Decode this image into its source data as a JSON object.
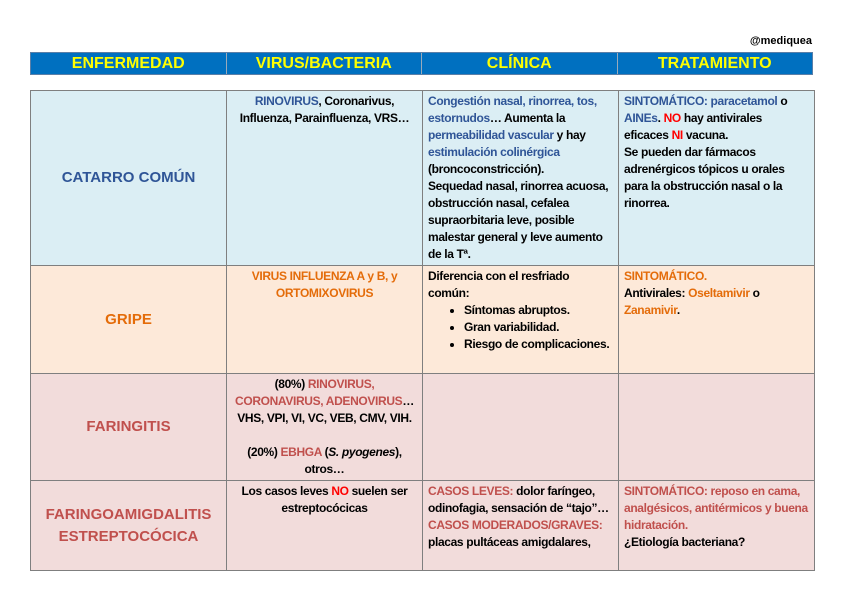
{
  "handle": "@mediquea",
  "headers": [
    "ENFERMEDAD",
    "VIRUS/BACTERIA",
    "CLÍNICA",
    "TRATAMIENTO"
  ],
  "colors": {
    "header_bg": "#0070c0",
    "header_text": "#ffff00",
    "blue": "#2f5597",
    "red": "#ff0000",
    "orange": "#e46c0a",
    "rose": "#c0504d"
  },
  "rows": [
    {
      "name": "CATARRO COMÚN",
      "name_color": "b",
      "virus": [
        [
          [
            "RINOVIRUS",
            "b"
          ],
          [
            ", Coronarivus, Influenza, Parainfluenza, VRS…",
            "k"
          ]
        ]
      ],
      "clinica": [
        [
          [
            "Congestión nasal, rinorrea, tos, estornudos",
            "b"
          ],
          [
            "… Aumenta la ",
            "k"
          ],
          [
            "permeabilidad vascular",
            "b"
          ],
          [
            " y hay ",
            "k"
          ],
          [
            "estimulación colinérgica",
            "b"
          ],
          [
            " (broncoconstricción).",
            "k"
          ]
        ],
        [
          [
            "Sequedad nasal, rinorrea acuosa, obstrucción nasal, cefalea supraorbitaria leve, posible malestar general y leve aumento de la Tª.",
            "k"
          ]
        ]
      ],
      "tratamiento": [
        [
          [
            "SINTOMÁTICO: paracetamol",
            "b"
          ],
          [
            " o ",
            "k"
          ],
          [
            "AINEs",
            "b"
          ],
          [
            ". ",
            "k"
          ],
          [
            "NO",
            "r"
          ],
          [
            " hay antivirales eficaces ",
            "k"
          ],
          [
            "NI",
            "r"
          ],
          [
            " vacuna.",
            "k"
          ]
        ],
        [
          [
            "Se pueden dar fármacos adrenérgicos tópicos u orales para la obstrucción nasal o la rinorrea.",
            "k"
          ]
        ]
      ]
    },
    {
      "name": "GRIPE",
      "name_color": "o",
      "virus": [
        [
          [
            "VIRUS INFLUENZA A y B, y ORTOMIXOVIRUS",
            "o"
          ]
        ]
      ],
      "clinica": [
        [
          [
            "Diferencia con el resfriado común:",
            "k"
          ]
        ],
        {
          "li": [
            [
              "Síntomas abruptos.",
              "k"
            ]
          ]
        },
        {
          "li": [
            [
              "Gran variabilidad.",
              "k"
            ]
          ]
        },
        {
          "li": [
            [
              "Riesgo de complicaciones.",
              "k"
            ]
          ]
        }
      ],
      "tratamiento": [
        [
          [
            "SINTOMÁTICO.",
            "o"
          ]
        ],
        [
          [
            "Antivirales: ",
            "k"
          ],
          [
            "Oseltamivir",
            "o"
          ],
          [
            " o ",
            "k"
          ],
          [
            "Zanamivir",
            "o"
          ],
          [
            ".",
            "k"
          ]
        ]
      ]
    },
    {
      "name": "FARINGITIS",
      "name_color": "p",
      "virus": [
        [
          [
            "(80%) ",
            "k"
          ],
          [
            "RINOVIRUS, CORONAVIRUS, ADENOVIRUS",
            "p"
          ],
          [
            "… VHS, VPI, VI, VC, VEB, CMV, VIH.",
            "k"
          ]
        ],
        "gap",
        [
          [
            "(20%) ",
            "k"
          ],
          [
            "EBHGA",
            "p"
          ],
          [
            " (",
            "k"
          ],
          [
            "S. pyogenes",
            "ki"
          ],
          [
            "), otros…",
            "k"
          ]
        ]
      ],
      "clinica": [],
      "tratamiento": []
    },
    {
      "name": "FARINGOAMIGDALITIS ESTREPTOCÓCICA",
      "name_color": "p",
      "virus": [
        [
          [
            "Los casos leves ",
            "k"
          ],
          [
            "NO",
            "r"
          ],
          [
            " suelen ser estreptocócicas",
            "k"
          ]
        ]
      ],
      "clinica": [
        [
          [
            "CASOS LEVES:",
            "p"
          ],
          [
            " dolor faríngeo, odinofagia, sensación de “tajo”…",
            "k"
          ]
        ],
        [
          [
            "CASOS MODERADOS/GRAVES:",
            "p"
          ],
          [
            " placas pultáceas amigdalares,",
            "k"
          ]
        ]
      ],
      "tratamiento": [
        [
          [
            "SINTOMÁTICO: reposo en cama, analgésicos, antitérmicos y buena hidratación.",
            "p"
          ]
        ],
        [
          [
            "¿Etiología bacteriana?",
            "k"
          ]
        ]
      ]
    }
  ]
}
